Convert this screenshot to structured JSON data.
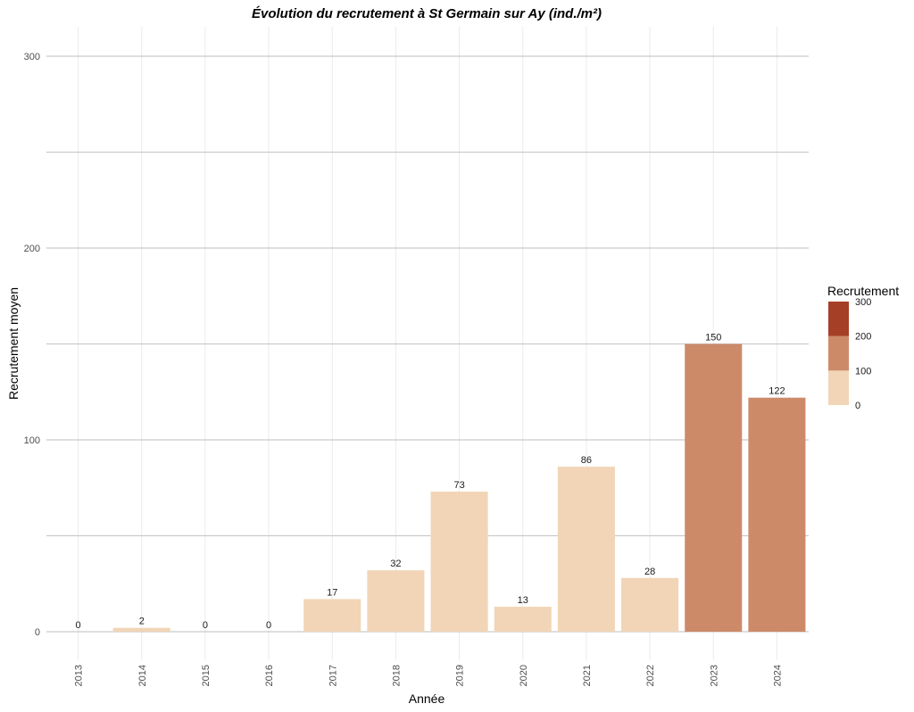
{
  "chart_data": {
    "type": "bar",
    "title": "Évolution du recrutement à St Germain sur Ay (ind./m²)",
    "xlabel": "Année",
    "ylabel": "Recrutement moyen",
    "categories": [
      "2013",
      "2014",
      "2015",
      "2016",
      "2017",
      "2018",
      "2019",
      "2020",
      "2021",
      "2022",
      "2023",
      "2024"
    ],
    "values": [
      0,
      2,
      0,
      0,
      17,
      32,
      73,
      13,
      86,
      28,
      150,
      122
    ],
    "data_labels": [
      "0",
      "2",
      "0",
      "0",
      "17",
      "32",
      "73",
      "13",
      "86",
      "28",
      "150",
      "122"
    ],
    "ylim": [
      -10,
      300
    ],
    "y_ticks": [
      0,
      100,
      200,
      300
    ],
    "y_tick_labels": [
      "0",
      "100",
      "200",
      "300"
    ],
    "grid": true,
    "legend": {
      "title": "Recrutement",
      "position": "right",
      "labels": [
        "300",
        "200",
        "100",
        "0"
      ],
      "bins": [
        {
          "from": 0,
          "to": 100,
          "color": "#f1d5b6"
        },
        {
          "from": 100,
          "to": 200,
          "color": "#cd8a69"
        },
        {
          "from": 200,
          "to": 300,
          "color": "#a53f25"
        }
      ]
    },
    "bar_colors": {
      "low": "#f1d5b6",
      "mid": "#cd8a69",
      "high": "#a53f25"
    }
  }
}
